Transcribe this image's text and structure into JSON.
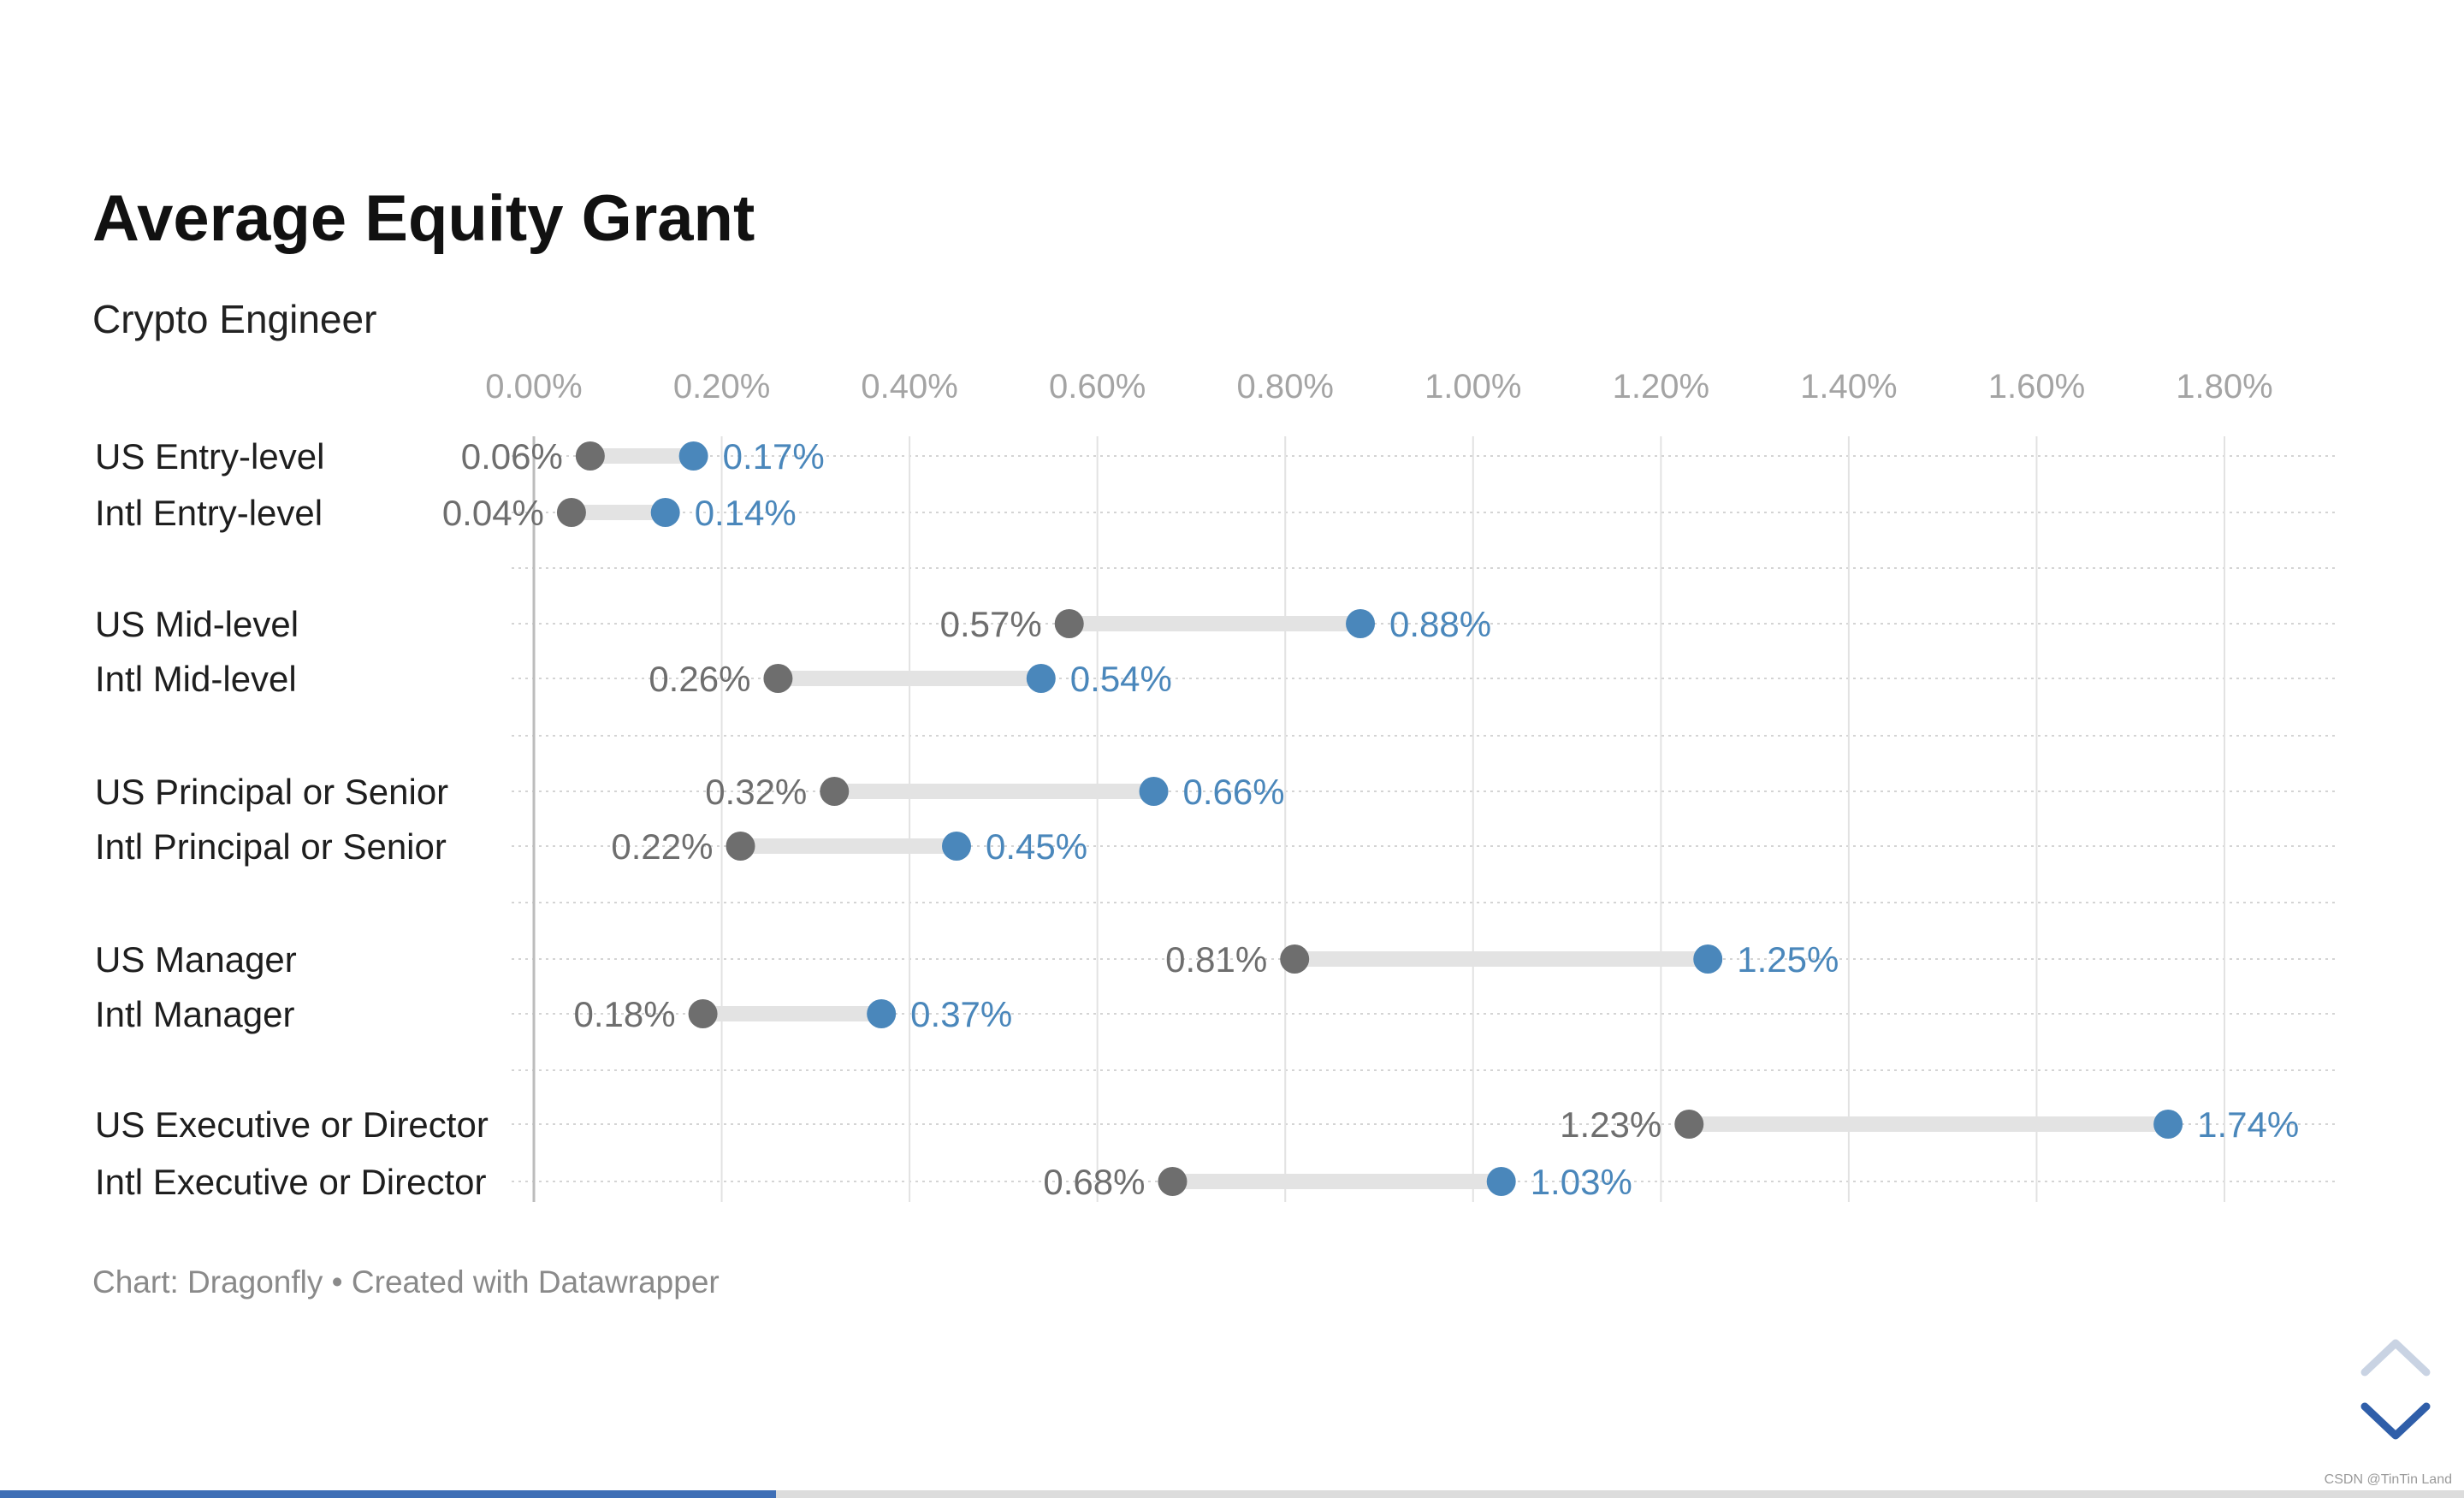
{
  "chart_data": {
    "type": "dot-range",
    "title": "Average Equity Grant",
    "subtitle": "Crypto Engineer",
    "x_tick_labels": [
      "0.00%",
      "0.20%",
      "0.40%",
      "0.60%",
      "0.80%",
      "1.00%",
      "1.20%",
      "1.40%",
      "1.60%",
      "1.80%"
    ],
    "x_ticks": [
      0,
      0.2,
      0.4,
      0.6,
      0.8,
      1.0,
      1.2,
      1.4,
      1.6,
      1.8
    ],
    "xlim": [
      0,
      1.92
    ],
    "categories": [
      "US Entry-level",
      "Intl Entry-level",
      "US Mid-level",
      "Intl Mid-level",
      "US Principal or Senior",
      "Intl Principal or Senior",
      "US Manager",
      "Intl Manager",
      "US Executive or Director",
      "Intl Executive or Director"
    ],
    "series": [
      {
        "values": [
          0.06,
          0.04,
          0.57,
          0.26,
          0.32,
          0.22,
          0.81,
          0.18,
          1.23,
          0.68
        ],
        "labels": [
          "0.06%",
          "0.04%",
          "0.57%",
          "0.26%",
          "0.32%",
          "0.22%",
          "0.81%",
          "0.18%",
          "1.23%",
          "0.68%"
        ],
        "color": "#6e6e6e"
      },
      {
        "values": [
          0.17,
          0.14,
          0.88,
          0.54,
          0.66,
          0.45,
          1.25,
          0.37,
          1.74,
          1.03
        ],
        "labels": [
          "0.17%",
          "0.14%",
          "0.88%",
          "0.54%",
          "0.66%",
          "0.45%",
          "1.25%",
          "0.37%",
          "1.74%",
          "1.03%"
        ],
        "color": "#4a87bb"
      }
    ],
    "range_bar_color": "#e3e3e3",
    "grid": true
  },
  "footer": {
    "text": "Chart: Dragonfly • Created with Datawrapper"
  },
  "navigation": {
    "up_icon": "chevron-up-icon",
    "down_icon": "chevron-down-icon"
  },
  "progress": {
    "fraction": 0.315,
    "color": "#3f6fb6"
  },
  "watermark": {
    "text": "CSDN @TinTin Land"
  }
}
